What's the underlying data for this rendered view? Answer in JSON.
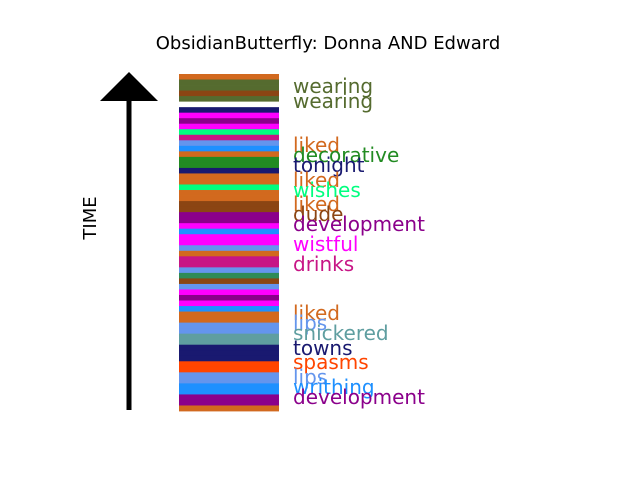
{
  "chart_data": {
    "type": "bar",
    "title": "ObsidianButterfly: Donna AND Edward",
    "ylabel": "TIME",
    "stripes": [
      {
        "color": "#d2691e"
      },
      {
        "color": "#556b2f"
      },
      {
        "color": "#556b2f"
      },
      {
        "color": "#8b4513"
      },
      {
        "color": "#556b2f"
      },
      {
        "color": "#ffffff"
      },
      {
        "color": "#191970"
      },
      {
        "color": "#ff00ff"
      },
      {
        "color": "#8b008b"
      },
      {
        "color": "#ff00ff"
      },
      {
        "color": "#00ff7f"
      },
      {
        "color": "#c71585"
      },
      {
        "color": "#6495ed"
      },
      {
        "color": "#1e90ff"
      },
      {
        "color": "#d2691e"
      },
      {
        "color": "#228b22"
      },
      {
        "color": "#228b22"
      },
      {
        "color": "#191970"
      },
      {
        "color": "#d2691e"
      },
      {
        "color": "#d2691e"
      },
      {
        "color": "#00ff7f"
      },
      {
        "color": "#d2691e"
      },
      {
        "color": "#d2691e"
      },
      {
        "color": "#8b4513"
      },
      {
        "color": "#8b4513"
      },
      {
        "color": "#8b008b"
      },
      {
        "color": "#8b008b"
      },
      {
        "color": "#ff00ff"
      },
      {
        "color": "#1e90ff"
      },
      {
        "color": "#ff00ff"
      },
      {
        "color": "#ff00ff"
      },
      {
        "color": "#6495ed"
      },
      {
        "color": "#d2691e"
      },
      {
        "color": "#c71585"
      },
      {
        "color": "#c71585"
      },
      {
        "color": "#6495ed"
      },
      {
        "color": "#2e8b57"
      },
      {
        "color": "#8b4513"
      },
      {
        "color": "#6495ed"
      },
      {
        "color": "#ff00ff"
      },
      {
        "color": "#8b008b"
      },
      {
        "color": "#ff00ff"
      },
      {
        "color": "#1e90ff"
      },
      {
        "color": "#d2691e"
      },
      {
        "color": "#d2691e"
      },
      {
        "color": "#6495ed"
      },
      {
        "color": "#6495ed"
      },
      {
        "color": "#5f9ea0"
      },
      {
        "color": "#5f9ea0"
      },
      {
        "color": "#191970"
      },
      {
        "color": "#191970"
      },
      {
        "color": "#191970"
      },
      {
        "color": "#ff4500"
      },
      {
        "color": "#ff4500"
      },
      {
        "color": "#6495ed"
      },
      {
        "color": "#6495ed"
      },
      {
        "color": "#1e90ff"
      },
      {
        "color": "#1e90ff"
      },
      {
        "color": "#8b008b"
      },
      {
        "color": "#8b008b"
      },
      {
        "color": "#d2691e"
      }
    ],
    "labels": [
      {
        "text": "wearing",
        "color": "#556b2f"
      },
      {
        "text": "wearing",
        "color": "#556b2f"
      },
      {
        "text": "liked",
        "color": "#d2691e"
      },
      {
        "text": "decorative",
        "color": "#228b22"
      },
      {
        "text": "tonight",
        "color": "#191970"
      },
      {
        "text": "liked",
        "color": "#d2691e"
      },
      {
        "text": "wishes",
        "color": "#00ff7f"
      },
      {
        "text": "liked",
        "color": "#d2691e"
      },
      {
        "text": "dude",
        "color": "#8b4513"
      },
      {
        "text": "development",
        "color": "#8b008b"
      },
      {
        "text": "wistful",
        "color": "#ff00ff"
      },
      {
        "text": "drinks",
        "color": "#c71585"
      },
      {
        "text": "liked",
        "color": "#d2691e"
      },
      {
        "text": "lips",
        "color": "#6495ed"
      },
      {
        "text": "snickered",
        "color": "#5f9ea0"
      },
      {
        "text": "towns",
        "color": "#191970"
      },
      {
        "text": "spasms",
        "color": "#ff4500"
      },
      {
        "text": "lips",
        "color": "#6495ed"
      },
      {
        "text": "writhing",
        "color": "#1e90ff"
      },
      {
        "text": "development",
        "color": "#8b008b"
      }
    ]
  }
}
